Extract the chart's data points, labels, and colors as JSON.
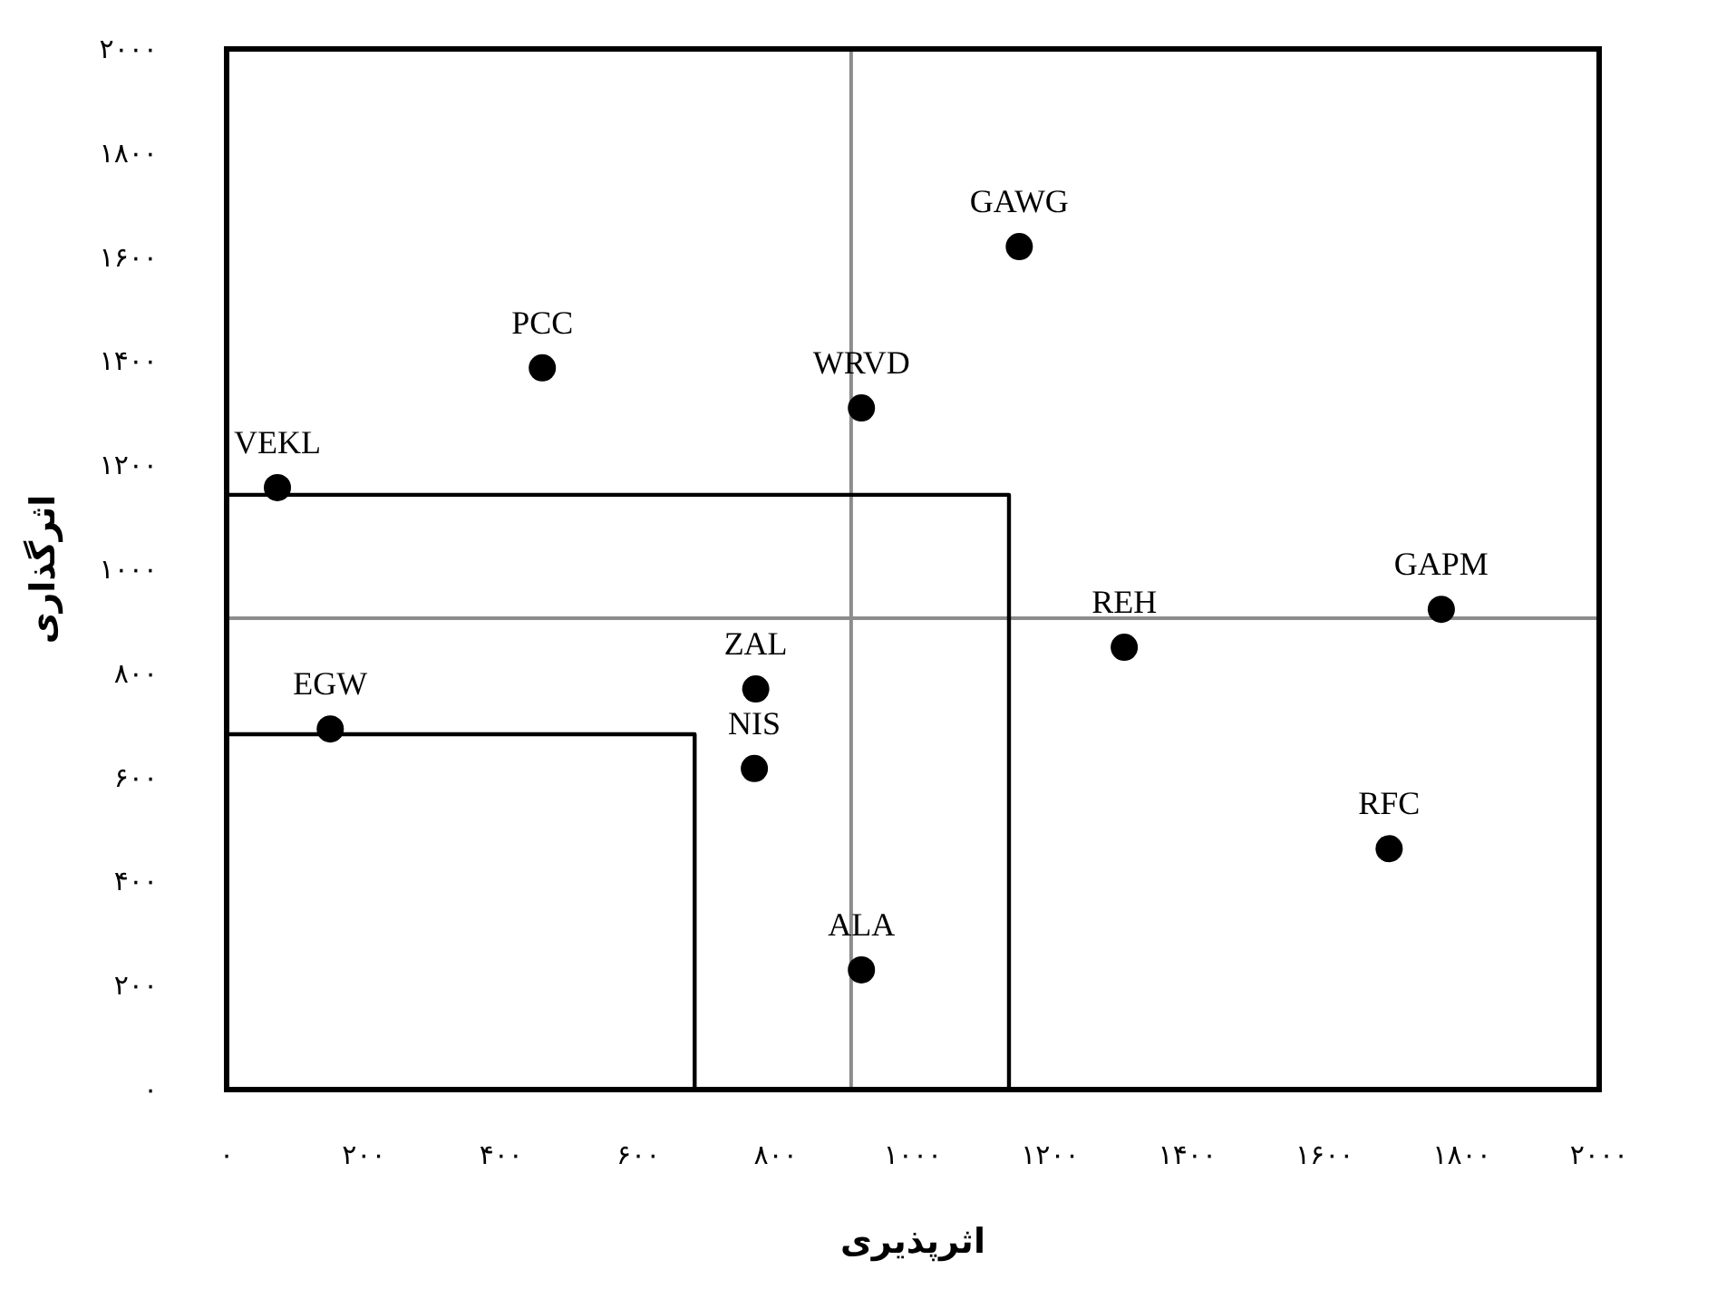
{
  "chart_data": {
    "type": "scatter",
    "xlabel": "اثرپذیری",
    "ylabel": "اثرگذاری",
    "xlim": [
      0,
      2000
    ],
    "ylim": [
      0,
      2000
    ],
    "xticks": [
      {
        "value": 0,
        "label": "۰"
      },
      {
        "value": 200,
        "label": "۲۰۰"
      },
      {
        "value": 400,
        "label": "۴۰۰"
      },
      {
        "value": 600,
        "label": "۶۰۰"
      },
      {
        "value": 800,
        "label": "۸۰۰"
      },
      {
        "value": 1000,
        "label": "۱۰۰۰"
      },
      {
        "value": 1200,
        "label": "۱۲۰۰"
      },
      {
        "value": 1400,
        "label": "۱۴۰۰"
      },
      {
        "value": 1600,
        "label": "۱۶۰۰"
      },
      {
        "value": 1800,
        "label": "۱۸۰۰"
      },
      {
        "value": 2000,
        "label": "۲۰۰۰"
      }
    ],
    "yticks": [
      {
        "value": 0,
        "label": "۰"
      },
      {
        "value": 200,
        "label": "۲۰۰"
      },
      {
        "value": 400,
        "label": "۴۰۰"
      },
      {
        "value": 600,
        "label": "۶۰۰"
      },
      {
        "value": 800,
        "label": "۸۰۰"
      },
      {
        "value": 1000,
        "label": "۱۰۰۰"
      },
      {
        "value": 1200,
        "label": "۱۲۰۰"
      },
      {
        "value": 1400,
        "label": "۱۴۰۰"
      },
      {
        "value": 1600,
        "label": "۱۶۰۰"
      },
      {
        "value": 1800,
        "label": "۱۸۰۰"
      },
      {
        "value": 2000,
        "label": "۲۰۰۰"
      }
    ],
    "marker": "circle",
    "series": [
      {
        "type": "scatter",
        "color": "#000000",
        "x": [
          74,
          460,
          1155,
          925,
          1770,
          1308,
          771,
          151,
          769,
          1694,
          925
        ],
        "values": [
          1157,
          1387,
          1620,
          1310,
          923,
          850,
          770,
          693,
          617,
          463,
          230
        ]
      },
      {
        "type": "line",
        "marker": "none",
        "color": "#000000",
        "x": [
          0,
          1140,
          1140
        ],
        "values": [
          1143,
          1143,
          0
        ]
      },
      {
        "type": "line",
        "marker": "none",
        "color": "#000000",
        "x": [
          0,
          682,
          682
        ],
        "values": [
          683,
          683,
          0
        ]
      }
    ],
    "ref_lines": [
      {
        "axis": "x",
        "value": 910,
        "color": "#8c8c8c"
      },
      {
        "axis": "y",
        "value": 906,
        "color": "#8c8c8c"
      }
    ],
    "annotations": [
      {
        "text": "VEKL",
        "x": 74,
        "y": 1157
      },
      {
        "text": "PCC",
        "x": 460,
        "y": 1387
      },
      {
        "text": "GAWG",
        "x": 1155,
        "y": 1620
      },
      {
        "text": "WRVD",
        "x": 925,
        "y": 1310
      },
      {
        "text": "GAPM",
        "x": 1770,
        "y": 923
      },
      {
        "text": "REH",
        "x": 1308,
        "y": 850
      },
      {
        "text": "ZAL",
        "x": 771,
        "y": 770
      },
      {
        "text": "EGW",
        "x": 151,
        "y": 693
      },
      {
        "text": "NIS",
        "x": 769,
        "y": 617
      },
      {
        "text": "RFC",
        "x": 1694,
        "y": 463
      },
      {
        "text": "ALA",
        "x": 925,
        "y": 230
      }
    ]
  }
}
